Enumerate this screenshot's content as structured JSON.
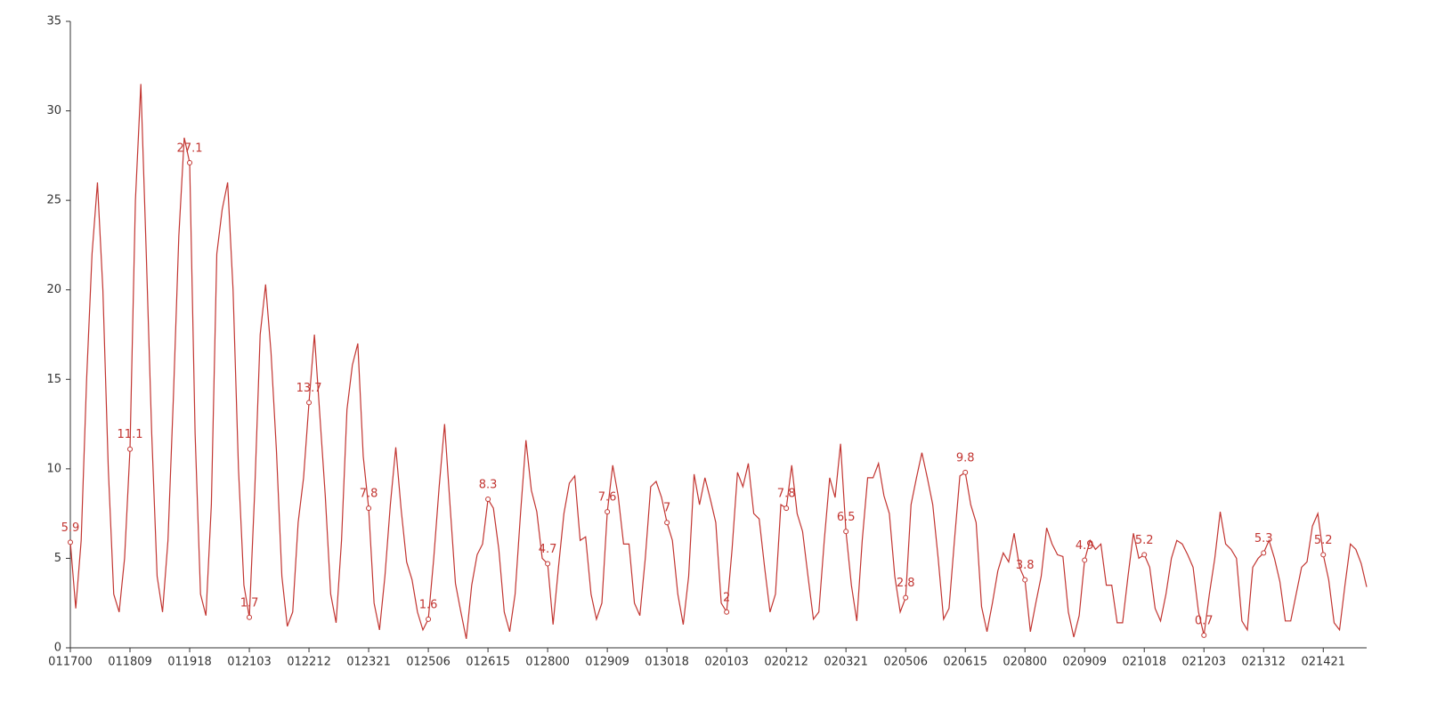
{
  "chart_data": {
    "type": "line",
    "color": "#c23531",
    "ylim": [
      0,
      35
    ],
    "yticks": [
      0,
      5,
      10,
      15,
      20,
      25,
      30,
      35
    ],
    "grid": false,
    "categories": [
      "011700",
      null,
      null,
      null,
      null,
      null,
      null,
      null,
      null,
      null,
      null,
      "011809",
      null,
      null,
      null,
      null,
      null,
      null,
      null,
      null,
      null,
      null,
      "011918",
      null,
      null,
      null,
      null,
      null,
      null,
      null,
      null,
      null,
      null,
      "012103",
      null,
      null,
      null,
      null,
      null,
      null,
      null,
      null,
      null,
      null,
      "012212",
      null,
      null,
      null,
      null,
      null,
      null,
      null,
      null,
      null,
      null,
      "012321",
      null,
      null,
      null,
      null,
      null,
      null,
      null,
      null,
      null,
      null,
      "012506",
      null,
      null,
      null,
      null,
      null,
      null,
      null,
      null,
      null,
      null,
      "012615",
      null,
      null,
      null,
      null,
      null,
      null,
      null,
      null,
      null,
      null,
      "012800",
      null,
      null,
      null,
      null,
      null,
      null,
      null,
      null,
      null,
      null,
      "012909",
      null,
      null,
      null,
      null,
      null,
      null,
      null,
      null,
      null,
      null,
      "013018",
      null,
      null,
      null,
      null,
      null,
      null,
      null,
      null,
      null,
      null,
      "020103",
      null,
      null,
      null,
      null,
      null,
      null,
      null,
      null,
      null,
      null,
      "020212",
      null,
      null,
      null,
      null,
      null,
      null,
      null,
      null,
      null,
      null,
      "020321",
      null,
      null,
      null,
      null,
      null,
      null,
      null,
      null,
      null,
      null,
      "020506",
      null,
      null,
      null,
      null,
      null,
      null,
      null,
      null,
      null,
      null,
      "020615",
      null,
      null,
      null,
      null,
      null,
      null,
      null,
      null,
      null,
      null,
      "020800",
      null,
      null,
      null,
      null,
      null,
      null,
      null,
      null,
      null,
      null,
      "020909",
      null,
      null,
      null,
      null,
      null,
      null,
      null,
      null,
      null,
      null,
      "021018",
      null,
      null,
      null,
      null,
      null,
      null,
      null,
      null,
      null,
      null,
      "021203",
      null,
      null,
      null,
      null,
      null,
      null,
      null,
      null,
      null,
      null,
      "021312",
      null,
      null,
      null,
      null,
      null,
      null,
      null,
      null,
      null,
      null,
      "021421",
      null,
      null,
      null,
      null,
      null,
      null,
      null,
      null
    ],
    "values": [
      5.9,
      2.2,
      6,
      15,
      22,
      26,
      20,
      10,
      3,
      2,
      5,
      11.1,
      25,
      31.5,
      22,
      12,
      4,
      2,
      6,
      14,
      23,
      28.5,
      27.1,
      12,
      3,
      1.8,
      8,
      22,
      24.5,
      26,
      20,
      10,
      3.5,
      1.7,
      8.8,
      17.5,
      20.3,
      16.5,
      11,
      4,
      1.2,
      2,
      7,
      9.5,
      13.7,
      17.5,
      13,
      8.5,
      3,
      1.4,
      6,
      13.3,
      15.8,
      17,
      10.7,
      7.8,
      2.5,
      1,
      4,
      8,
      11.2,
      7.7,
      4.8,
      3.8,
      2,
      1,
      1.6,
      5,
      9,
      12.5,
      8,
      3.6,
      2,
      0.5,
      3.5,
      5.2,
      5.8,
      8.3,
      7.8,
      5.5,
      2,
      0.9,
      3,
      7.5,
      11.6,
      8.8,
      7.6,
      5,
      4.7,
      1.3,
      4.5,
      7.5,
      9.2,
      9.6,
      6,
      6.2,
      3,
      1.6,
      2.5,
      7.6,
      10.2,
      8.5,
      5.8,
      5.8,
      2.5,
      1.8,
      5,
      9,
      9.3,
      8.4,
      7,
      6,
      3,
      1.3,
      4,
      9.7,
      8,
      9.5,
      8.3,
      7,
      2.5,
      2,
      5.5,
      9.8,
      9,
      10.3,
      7.5,
      7.2,
      4.5,
      2,
      3,
      8,
      7.8,
      10.2,
      7.5,
      6.5,
      4,
      1.6,
      2,
      6,
      9.5,
      8.4,
      11.4,
      6.5,
      3.5,
      1.5,
      6,
      9.5,
      9.5,
      10.3,
      8.5,
      7.5,
      4,
      2,
      2.8,
      8,
      9.5,
      10.9,
      9.5,
      8,
      5,
      1.6,
      2.2,
      6,
      9.6,
      9.8,
      8,
      7,
      2.3,
      0.9,
      2.5,
      4.3,
      5.3,
      4.8,
      6.4,
      4.5,
      3.8,
      0.9,
      2.5,
      4,
      6.7,
      5.8,
      5.2,
      5.1,
      2,
      0.6,
      1.8,
      4.9,
      6,
      5.5,
      5.8,
      3.5,
      3.5,
      1.4,
      1.4,
      4,
      6.4,
      5,
      5.2,
      4.5,
      2.2,
      1.5,
      3,
      5,
      6,
      5.8,
      5.2,
      4.5,
      2,
      0.7,
      3,
      5,
      7.6,
      5.8,
      5.5,
      5,
      1.5,
      1,
      4.5,
      5,
      5.3,
      6,
      5,
      3.7,
      1.5,
      1.5,
      3,
      4.5,
      4.8,
      6.8,
      7.5,
      5.2,
      3.8,
      1.4,
      1,
      3.5,
      5.8,
      5.5,
      4.7,
      3.4
    ]
  }
}
